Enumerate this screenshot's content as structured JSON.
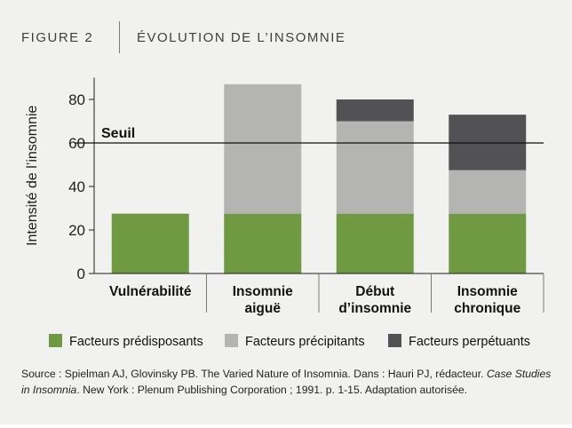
{
  "figure": {
    "label": "FIGURE  2",
    "title": "ÉVOLUTION DE L’INSOMNIE"
  },
  "chart_data": {
    "type": "bar",
    "stacked": true,
    "categories": [
      [
        "Vulnérabilité"
      ],
      [
        "Insomnie",
        "aiguë"
      ],
      [
        "Début",
        "d’insomnie"
      ],
      [
        "Insomnie",
        "chronique"
      ]
    ],
    "series": [
      {
        "name": "Facteurs prédisposants",
        "color": "#6f9a42",
        "values": [
          27.5,
          27.5,
          27.5,
          27.5
        ]
      },
      {
        "name": "Facteurs précipitants",
        "color": "#b4b4b2",
        "values": [
          0,
          59.5,
          42.5,
          20
        ]
      },
      {
        "name": "Facteurs perpétuants",
        "color": "#525254",
        "values": [
          0,
          0,
          10,
          25.5
        ]
      }
    ],
    "ylabel": "Intensité de l’insomnie",
    "ylim": [
      0,
      90
    ],
    "yticks": [
      0,
      20,
      40,
      60,
      80
    ],
    "threshold": {
      "label": "Seuil",
      "value": 60
    },
    "grid": false,
    "legend_position": "bottom"
  },
  "source": {
    "part1": "Source : Spielman AJ, Glovinsky PB. The Varied Nature of Insomnia. Dans : Hauri PJ, rédacteur. ",
    "book": "Case Studies in Insomnia",
    "part2": ". New York : Plenum Publishing Corporation ; 1991. p. 1-15. Adaptation autorisée."
  }
}
